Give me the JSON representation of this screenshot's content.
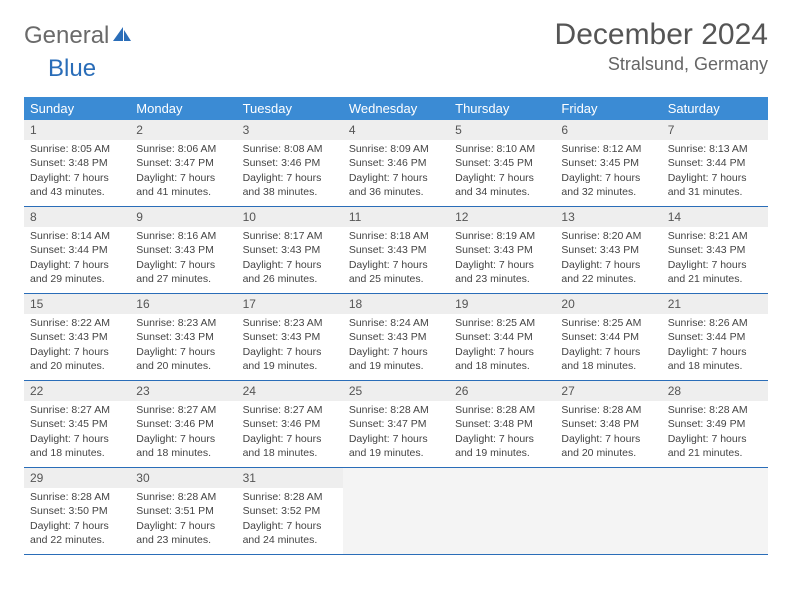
{
  "logo": {
    "text1": "General",
    "text2": "Blue"
  },
  "title": "December 2024",
  "location": "Stralsund, Germany",
  "colors": {
    "header_bg": "#3b8bd4",
    "rule": "#2a6db8",
    "daynum_bg": "#eeeeee",
    "empty_bg": "#f4f4f4",
    "text": "#444444"
  },
  "day_labels": [
    "Sunday",
    "Monday",
    "Tuesday",
    "Wednesday",
    "Thursday",
    "Friday",
    "Saturday"
  ],
  "weeks": [
    [
      {
        "n": "1",
        "sr": "Sunrise: 8:05 AM",
        "ss": "Sunset: 3:48 PM",
        "d1": "Daylight: 7 hours",
        "d2": "and 43 minutes."
      },
      {
        "n": "2",
        "sr": "Sunrise: 8:06 AM",
        "ss": "Sunset: 3:47 PM",
        "d1": "Daylight: 7 hours",
        "d2": "and 41 minutes."
      },
      {
        "n": "3",
        "sr": "Sunrise: 8:08 AM",
        "ss": "Sunset: 3:46 PM",
        "d1": "Daylight: 7 hours",
        "d2": "and 38 minutes."
      },
      {
        "n": "4",
        "sr": "Sunrise: 8:09 AM",
        "ss": "Sunset: 3:46 PM",
        "d1": "Daylight: 7 hours",
        "d2": "and 36 minutes."
      },
      {
        "n": "5",
        "sr": "Sunrise: 8:10 AM",
        "ss": "Sunset: 3:45 PM",
        "d1": "Daylight: 7 hours",
        "d2": "and 34 minutes."
      },
      {
        "n": "6",
        "sr": "Sunrise: 8:12 AM",
        "ss": "Sunset: 3:45 PM",
        "d1": "Daylight: 7 hours",
        "d2": "and 32 minutes."
      },
      {
        "n": "7",
        "sr": "Sunrise: 8:13 AM",
        "ss": "Sunset: 3:44 PM",
        "d1": "Daylight: 7 hours",
        "d2": "and 31 minutes."
      }
    ],
    [
      {
        "n": "8",
        "sr": "Sunrise: 8:14 AM",
        "ss": "Sunset: 3:44 PM",
        "d1": "Daylight: 7 hours",
        "d2": "and 29 minutes."
      },
      {
        "n": "9",
        "sr": "Sunrise: 8:16 AM",
        "ss": "Sunset: 3:43 PM",
        "d1": "Daylight: 7 hours",
        "d2": "and 27 minutes."
      },
      {
        "n": "10",
        "sr": "Sunrise: 8:17 AM",
        "ss": "Sunset: 3:43 PM",
        "d1": "Daylight: 7 hours",
        "d2": "and 26 minutes."
      },
      {
        "n": "11",
        "sr": "Sunrise: 8:18 AM",
        "ss": "Sunset: 3:43 PM",
        "d1": "Daylight: 7 hours",
        "d2": "and 25 minutes."
      },
      {
        "n": "12",
        "sr": "Sunrise: 8:19 AM",
        "ss": "Sunset: 3:43 PM",
        "d1": "Daylight: 7 hours",
        "d2": "and 23 minutes."
      },
      {
        "n": "13",
        "sr": "Sunrise: 8:20 AM",
        "ss": "Sunset: 3:43 PM",
        "d1": "Daylight: 7 hours",
        "d2": "and 22 minutes."
      },
      {
        "n": "14",
        "sr": "Sunrise: 8:21 AM",
        "ss": "Sunset: 3:43 PM",
        "d1": "Daylight: 7 hours",
        "d2": "and 21 minutes."
      }
    ],
    [
      {
        "n": "15",
        "sr": "Sunrise: 8:22 AM",
        "ss": "Sunset: 3:43 PM",
        "d1": "Daylight: 7 hours",
        "d2": "and 20 minutes."
      },
      {
        "n": "16",
        "sr": "Sunrise: 8:23 AM",
        "ss": "Sunset: 3:43 PM",
        "d1": "Daylight: 7 hours",
        "d2": "and 20 minutes."
      },
      {
        "n": "17",
        "sr": "Sunrise: 8:23 AM",
        "ss": "Sunset: 3:43 PM",
        "d1": "Daylight: 7 hours",
        "d2": "and 19 minutes."
      },
      {
        "n": "18",
        "sr": "Sunrise: 8:24 AM",
        "ss": "Sunset: 3:43 PM",
        "d1": "Daylight: 7 hours",
        "d2": "and 19 minutes."
      },
      {
        "n": "19",
        "sr": "Sunrise: 8:25 AM",
        "ss": "Sunset: 3:44 PM",
        "d1": "Daylight: 7 hours",
        "d2": "and 18 minutes."
      },
      {
        "n": "20",
        "sr": "Sunrise: 8:25 AM",
        "ss": "Sunset: 3:44 PM",
        "d1": "Daylight: 7 hours",
        "d2": "and 18 minutes."
      },
      {
        "n": "21",
        "sr": "Sunrise: 8:26 AM",
        "ss": "Sunset: 3:44 PM",
        "d1": "Daylight: 7 hours",
        "d2": "and 18 minutes."
      }
    ],
    [
      {
        "n": "22",
        "sr": "Sunrise: 8:27 AM",
        "ss": "Sunset: 3:45 PM",
        "d1": "Daylight: 7 hours",
        "d2": "and 18 minutes."
      },
      {
        "n": "23",
        "sr": "Sunrise: 8:27 AM",
        "ss": "Sunset: 3:46 PM",
        "d1": "Daylight: 7 hours",
        "d2": "and 18 minutes."
      },
      {
        "n": "24",
        "sr": "Sunrise: 8:27 AM",
        "ss": "Sunset: 3:46 PM",
        "d1": "Daylight: 7 hours",
        "d2": "and 18 minutes."
      },
      {
        "n": "25",
        "sr": "Sunrise: 8:28 AM",
        "ss": "Sunset: 3:47 PM",
        "d1": "Daylight: 7 hours",
        "d2": "and 19 minutes."
      },
      {
        "n": "26",
        "sr": "Sunrise: 8:28 AM",
        "ss": "Sunset: 3:48 PM",
        "d1": "Daylight: 7 hours",
        "d2": "and 19 minutes."
      },
      {
        "n": "27",
        "sr": "Sunrise: 8:28 AM",
        "ss": "Sunset: 3:48 PM",
        "d1": "Daylight: 7 hours",
        "d2": "and 20 minutes."
      },
      {
        "n": "28",
        "sr": "Sunrise: 8:28 AM",
        "ss": "Sunset: 3:49 PM",
        "d1": "Daylight: 7 hours",
        "d2": "and 21 minutes."
      }
    ],
    [
      {
        "n": "29",
        "sr": "Sunrise: 8:28 AM",
        "ss": "Sunset: 3:50 PM",
        "d1": "Daylight: 7 hours",
        "d2": "and 22 minutes."
      },
      {
        "n": "30",
        "sr": "Sunrise: 8:28 AM",
        "ss": "Sunset: 3:51 PM",
        "d1": "Daylight: 7 hours",
        "d2": "and 23 minutes."
      },
      {
        "n": "31",
        "sr": "Sunrise: 8:28 AM",
        "ss": "Sunset: 3:52 PM",
        "d1": "Daylight: 7 hours",
        "d2": "and 24 minutes."
      },
      null,
      null,
      null,
      null
    ]
  ]
}
